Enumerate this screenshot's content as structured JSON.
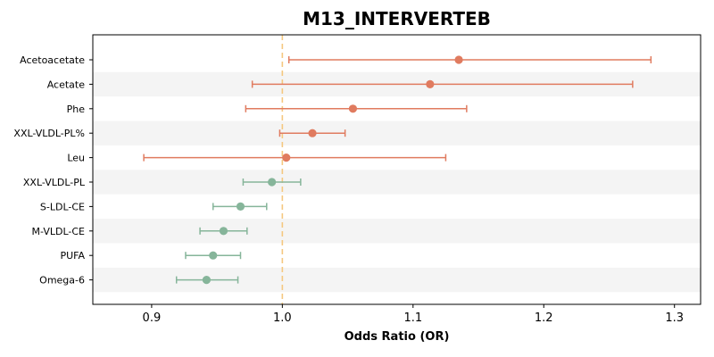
{
  "chart_data": {
    "type": "forest",
    "title": "M13_INTERVERTEB",
    "xlabel": "Odds Ratio (OR)",
    "ylabel": "",
    "xlim": [
      0.855,
      1.32
    ],
    "xticks": [
      0.9,
      1.0,
      1.1,
      1.2,
      1.3
    ],
    "xtick_labels": [
      "0.9",
      "1.0",
      "1.1",
      "1.2",
      "1.3"
    ],
    "reference_line": 1.0,
    "reference_color": "#f5c880",
    "grid": false,
    "colors": {
      "risk": "#e07b5f",
      "protective": "#86b59a",
      "band": "#f4f4f4"
    },
    "rows": [
      {
        "label": "Acetoacetate",
        "or": 1.135,
        "lower": 1.005,
        "upper": 1.282,
        "group": "risk"
      },
      {
        "label": "Acetate",
        "or": 1.113,
        "lower": 0.977,
        "upper": 1.268,
        "group": "risk"
      },
      {
        "label": "Phe",
        "or": 1.054,
        "lower": 0.972,
        "upper": 1.141,
        "group": "risk"
      },
      {
        "label": "XXL-VLDL-PL%",
        "or": 1.023,
        "lower": 0.998,
        "upper": 1.048,
        "group": "risk"
      },
      {
        "label": "Leu",
        "or": 1.003,
        "lower": 0.894,
        "upper": 1.125,
        "group": "risk"
      },
      {
        "label": "XXL-VLDL-PL",
        "or": 0.992,
        "lower": 0.97,
        "upper": 1.014,
        "group": "protective"
      },
      {
        "label": "S-LDL-CE",
        "or": 0.968,
        "lower": 0.947,
        "upper": 0.988,
        "group": "protective"
      },
      {
        "label": "M-VLDL-CE",
        "or": 0.955,
        "lower": 0.937,
        "upper": 0.973,
        "group": "protective"
      },
      {
        "label": "PUFA",
        "or": 0.947,
        "lower": 0.926,
        "upper": 0.968,
        "group": "protective"
      },
      {
        "label": "Omega-6",
        "or": 0.942,
        "lower": 0.919,
        "upper": 0.966,
        "group": "protective"
      }
    ]
  }
}
